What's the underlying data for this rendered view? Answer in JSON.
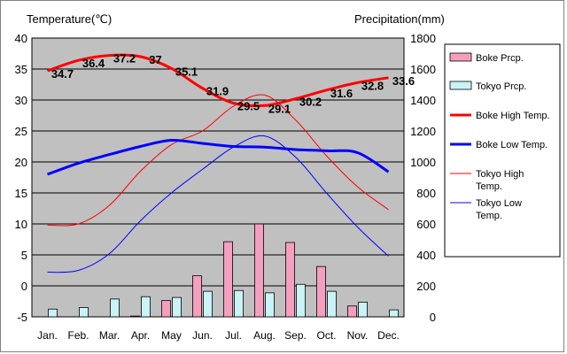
{
  "chart_data": {
    "type": "combo-bar-line",
    "left_axis_title": "Temperature(℃)",
    "right_axis_title": "Precipitation(mm)",
    "left_ylim": [
      -5,
      40
    ],
    "left_ticks": [
      "40",
      "35",
      "30",
      "25",
      "20",
      "15",
      "10",
      "5",
      "0",
      "-5"
    ],
    "right_ylim": [
      0,
      1800
    ],
    "right_ticks": [
      "1800",
      "1600",
      "1400",
      "1200",
      "1000",
      "800",
      "600",
      "400",
      "200",
      "0"
    ],
    "categories": [
      "Jan.",
      "Feb.",
      "Mar.",
      "Apr.",
      "May",
      "Jun.",
      "Jul.",
      "Aug.",
      "Sep.",
      "Oct.",
      "Nov.",
      "Dec."
    ],
    "grid": true,
    "legend_position": "right",
    "series": [
      {
        "name": "Boke Prcp.",
        "kind": "bar",
        "color": "#f59fbf",
        "values": [
          0,
          0,
          0,
          5,
          105,
          265,
          485,
          600,
          480,
          325,
          70,
          0
        ]
      },
      {
        "name": "Tokyo Prcp.",
        "kind": "bar",
        "color": "#c9f3f7",
        "values": [
          50,
          60,
          115,
          130,
          125,
          165,
          170,
          155,
          210,
          165,
          95,
          45
        ]
      },
      {
        "name": "Boke High Temp.",
        "kind": "line",
        "color": "#ff0000",
        "width": "thick",
        "values": [
          34.7,
          36.4,
          37.2,
          37.0,
          35.1,
          31.9,
          29.5,
          29.1,
          30.2,
          31.6,
          32.8,
          33.6
        ]
      },
      {
        "name": "Boke Low Temp.",
        "kind": "line",
        "color": "#0000ff",
        "width": "thick",
        "values": [
          18.0,
          19.8,
          21.2,
          22.5,
          23.5,
          23.0,
          22.5,
          22.4,
          22.0,
          21.8,
          21.5,
          18.4
        ]
      },
      {
        "name": "Tokyo High Temp.",
        "kind": "line",
        "color": "#ff0000",
        "width": "thin",
        "values": [
          9.8,
          10.0,
          13.0,
          18.5,
          22.8,
          25.0,
          29.0,
          30.8,
          26.8,
          21.0,
          16.0,
          12.3
        ]
      },
      {
        "name": "Tokyo Low Temp.",
        "kind": "line",
        "color": "#0000ff",
        "width": "thin",
        "values": [
          2.2,
          2.5,
          5.2,
          10.5,
          15.0,
          18.8,
          22.4,
          24.2,
          20.8,
          15.0,
          9.5,
          4.8
        ]
      }
    ],
    "legend_labels": [
      [
        "Boke Prcp."
      ],
      [
        "Tokyo Prcp."
      ],
      [
        "Boke High Temp."
      ],
      [
        "Boke Low Temp."
      ],
      [
        "Tokyo High",
        "Temp."
      ],
      [
        "Tokyo Low",
        "Temp."
      ]
    ],
    "boke_high_labels": [
      "34.7",
      "36.4",
      "37.2",
      "37",
      "35.1",
      "31.9",
      "29.5",
      "29.1",
      "30.2",
      "31.6",
      "32.8",
      "33.6"
    ]
  }
}
